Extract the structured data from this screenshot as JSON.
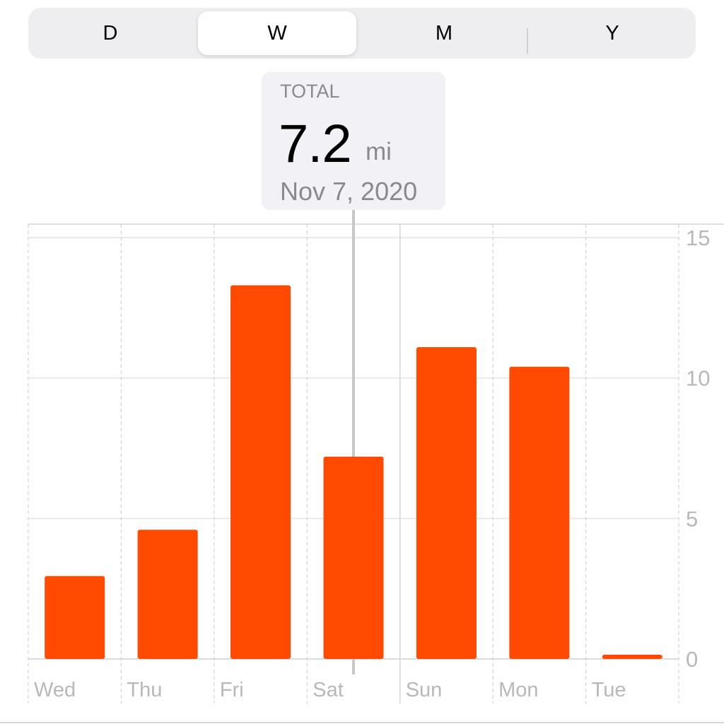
{
  "segments": [
    {
      "label": "D",
      "active": false
    },
    {
      "label": "W",
      "active": true
    },
    {
      "label": "M",
      "active": false
    },
    {
      "label": "Y",
      "active": false
    }
  ],
  "tooltip": {
    "label": "TOTAL",
    "value": "7.2",
    "unit": "mi",
    "date": "Nov 7, 2020"
  },
  "colors": {
    "bar": "#ff4a00",
    "grid": "#e4e4e6",
    "axis_text": "#b8b8bc",
    "selection_line": "#c7c7cc"
  },
  "chart_data": {
    "type": "bar",
    "categories": [
      "Wed",
      "Thu",
      "Fri",
      "Sat",
      "Sun",
      "Mon",
      "Tue"
    ],
    "values": [
      2.95,
      4.6,
      13.3,
      7.2,
      11.1,
      10.4,
      0.15
    ],
    "selected_index": 3,
    "ylim": [
      0,
      15
    ],
    "yticks": [
      "0",
      "5",
      "10",
      "15"
    ],
    "y_axis_side": "right",
    "grid": true,
    "legend": "none"
  }
}
